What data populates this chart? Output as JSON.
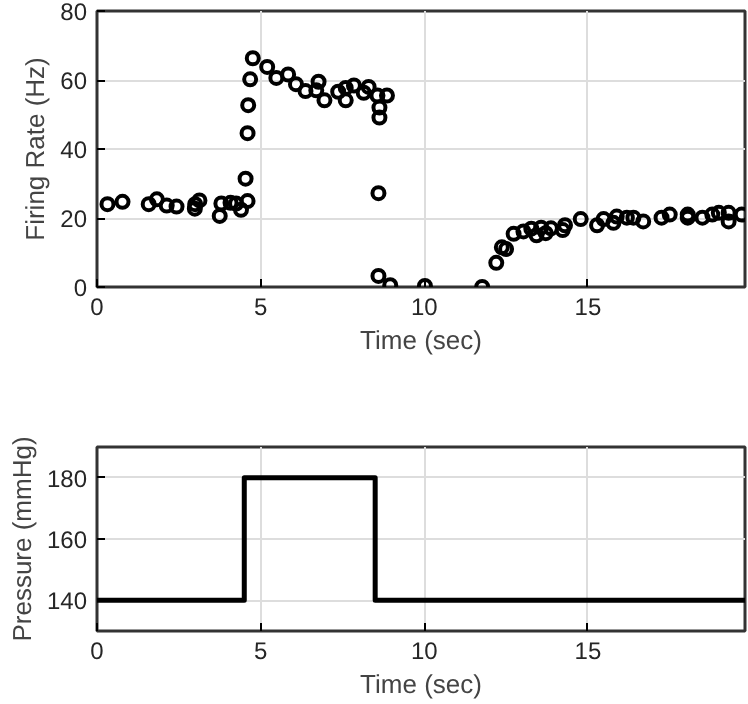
{
  "chart_data": [
    {
      "type": "scatter",
      "xlabel": "Time (sec)",
      "ylabel": "Firing Rate (Hz)",
      "xlim": [
        0,
        19.8
      ],
      "ylim": [
        0,
        80
      ],
      "xticks": [
        0,
        5,
        10,
        15
      ],
      "yticks": [
        0,
        20,
        40,
        60,
        80
      ],
      "grid": true,
      "marker": "circle",
      "series": [
        {
          "color": "#000000",
          "x": [
            0.32,
            0.78,
            1.58,
            1.83,
            2.13,
            2.43,
            2.99,
            3.0,
            3.13,
            3.75,
            3.8,
            4.08,
            4.25,
            4.4,
            4.6,
            4.54,
            4.6,
            4.62,
            4.68,
            4.76,
            5.2,
            5.48,
            5.84,
            6.08,
            6.37,
            6.77,
            6.7,
            6.95,
            7.37,
            7.6,
            7.6,
            7.85,
            8.15,
            8.3,
            8.57,
            8.86,
            8.63,
            8.63,
            8.6,
            8.6,
            8.96,
            10.02,
            11.77,
            12.2,
            12.37,
            12.5,
            12.73,
            13.03,
            13.27,
            13.43,
            13.57,
            13.71,
            13.87,
            14.23,
            14.3,
            14.78,
            15.28,
            15.48,
            15.78,
            15.88,
            16.19,
            16.39,
            16.69,
            17.25,
            17.5,
            18.05,
            18.05,
            18.5,
            18.8,
            19.0,
            19.3,
            19.3,
            19.7
          ],
          "values": [
            24.0,
            24.7,
            24.0,
            25.4,
            23.6,
            23.3,
            22.7,
            24.0,
            25.1,
            20.6,
            24.2,
            24.4,
            24.2,
            22.4,
            24.9,
            31.4,
            44.6,
            52.7,
            60.2,
            66.3,
            63.8,
            60.6,
            61.6,
            58.8,
            56.8,
            59.5,
            57.0,
            54.1,
            56.6,
            54.1,
            57.7,
            58.4,
            56.3,
            58.0,
            55.5,
            55.5,
            52.0,
            49.1,
            27.2,
            3.2,
            0.5,
            0.3,
            0.0,
            7.0,
            11.5,
            11.0,
            15.4,
            16.1,
            16.9,
            15.0,
            17.2,
            15.6,
            17.0,
            16.5,
            17.9,
            19.7,
            17.9,
            19.7,
            18.6,
            20.4,
            20.1,
            20.1,
            19.0,
            20.1,
            21.0,
            21.0,
            20.1,
            20.1,
            21.0,
            21.5,
            21.5,
            19.0,
            21.0
          ]
        }
      ]
    },
    {
      "type": "line",
      "xlabel": "Time (sec)",
      "ylabel": "Pressure (mmHg)",
      "xlim": [
        0,
        19.8
      ],
      "ylim": [
        130,
        190
      ],
      "xticks": [
        0,
        5,
        10,
        15
      ],
      "yticks": [
        140,
        160,
        180
      ],
      "grid": true,
      "marker": "none",
      "line_style": "solid",
      "series": [
        {
          "color": "#000000",
          "x": [
            0,
            4.5,
            4.5,
            8.5,
            8.5,
            19.8
          ],
          "values": [
            140,
            140,
            180,
            180,
            140,
            140
          ]
        }
      ]
    }
  ]
}
